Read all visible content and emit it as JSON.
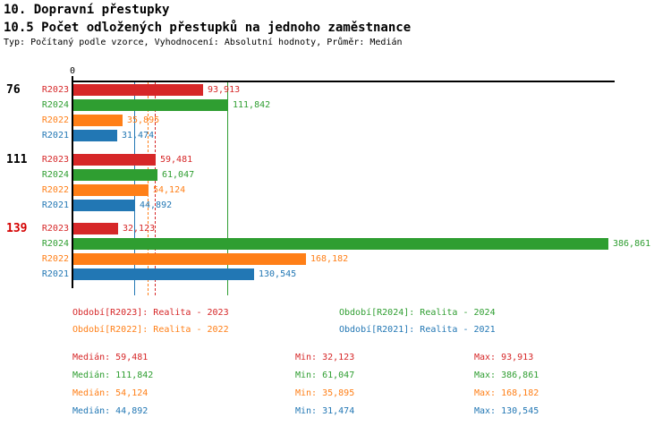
{
  "header": {
    "title_line1": "10. Dopravní přestupky",
    "title_line2": "10.5 Počet odložených přestupků na jednoho zaměstnance",
    "subtitle": "Typ: Počítaný podle vzorce, Vyhodnocení: Absolutní hodnoty, Průměr: Medián"
  },
  "palette": {
    "R2023": "#d62728",
    "R2024": "#2f9e31",
    "R2022": "#ff7f17",
    "R2021": "#2277b4",
    "alert": "#d40000",
    "axis": "#000000"
  },
  "chart_data": {
    "type": "bar",
    "orientation": "horizontal",
    "x_axis": {
      "zero_label": "0",
      "min": 0
    },
    "series_names": [
      "R2023",
      "R2024",
      "R2022",
      "R2021"
    ],
    "groups": [
      {
        "label": "76",
        "label_alert": false,
        "bars": [
          {
            "series": "R2023",
            "value": 93.913,
            "value_label": "93,913"
          },
          {
            "series": "R2024",
            "value": 111.842,
            "value_label": "111,842"
          },
          {
            "series": "R2022",
            "value": 35.895,
            "value_label": "35,895"
          },
          {
            "series": "R2021",
            "value": 31.474,
            "value_label": "31,474"
          }
        ]
      },
      {
        "label": "111",
        "label_alert": false,
        "bars": [
          {
            "series": "R2023",
            "value": 59.481,
            "value_label": "59,481"
          },
          {
            "series": "R2024",
            "value": 61.047,
            "value_label": "61,047"
          },
          {
            "series": "R2022",
            "value": 54.124,
            "value_label": "54,124"
          },
          {
            "series": "R2021",
            "value": 44.892,
            "value_label": "44,892"
          }
        ]
      },
      {
        "label": "139",
        "label_alert": true,
        "bars": [
          {
            "series": "R2023",
            "value": 32.123,
            "value_label": "32,123"
          },
          {
            "series": "R2024",
            "value": 386.861,
            "value_label": "386,861"
          },
          {
            "series": "R2022",
            "value": 168.182,
            "value_label": "168,182"
          },
          {
            "series": "R2021",
            "value": 130.545,
            "value_label": "130,545"
          }
        ]
      }
    ],
    "median_lines": [
      {
        "series": "R2023",
        "value": 59.481,
        "style": "dashed"
      },
      {
        "series": "R2024",
        "value": 111.842,
        "style": "solid"
      },
      {
        "series": "R2022",
        "value": 54.124,
        "style": "dashed"
      },
      {
        "series": "R2021",
        "value": 44.892,
        "style": "solid"
      }
    ]
  },
  "legend": {
    "items": [
      {
        "series": "R2023",
        "text": "Období[R2023]: Realita - 2023"
      },
      {
        "series": "R2024",
        "text": "Období[R2024]: Realita - 2024"
      },
      {
        "series": "R2022",
        "text": "Období[R2022]: Realita - 2022"
      },
      {
        "series": "R2021",
        "text": "Období[R2021]: Realita - 2021"
      }
    ]
  },
  "stats": {
    "labels": {
      "median": "Medián",
      "min": "Min",
      "max": "Max"
    },
    "rows": [
      {
        "series": "R2023",
        "median": "59,481",
        "min": "32,123",
        "max": "93,913"
      },
      {
        "series": "R2024",
        "median": "111,842",
        "min": "61,047",
        "max": "386,861"
      },
      {
        "series": "R2022",
        "median": "54,124",
        "min": "35,895",
        "max": "168,182"
      },
      {
        "series": "R2021",
        "median": "44,892",
        "min": "31,474",
        "max": "130,545"
      }
    ]
  }
}
